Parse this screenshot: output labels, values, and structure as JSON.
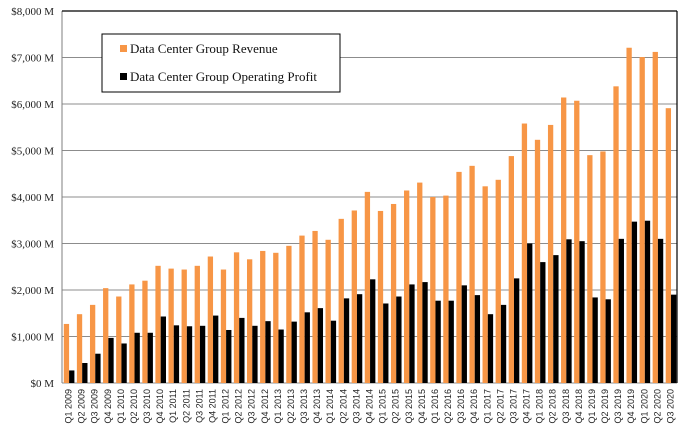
{
  "chart_data": {
    "type": "bar",
    "title": "",
    "xlabel": "",
    "ylabel": "",
    "ylim": [
      0,
      8000
    ],
    "y_ticks": [
      0,
      1000,
      2000,
      3000,
      4000,
      5000,
      6000,
      7000,
      8000
    ],
    "y_tick_labels": [
      "$0 M",
      "$1,000 M",
      "$2,000 M",
      "$3,000 M",
      "$4,000 M",
      "$5,000 M",
      "$6,000 M",
      "$7,000 M",
      "$8,000 M"
    ],
    "grid": true,
    "legend_position": "top-left",
    "categories": [
      "Q1 2009",
      "Q2 2009",
      "Q3 2009",
      "Q4 2009",
      "Q1 2010",
      "Q2 2010",
      "Q3 2010",
      "Q4 2010",
      "Q1 2011",
      "Q2 2011",
      "Q3 2011",
      "Q4 2011",
      "Q1 2012",
      "Q2 2012",
      "Q3 2012",
      "Q4 2012",
      "Q1 2013",
      "Q2 2013",
      "Q3 2013",
      "Q4 2013",
      "Q1 2014",
      "Q2 2014",
      "Q3 2014",
      "Q4 2014",
      "Q1 2015",
      "Q2 2015",
      "Q3 2015",
      "Q4 2015",
      "Q1 2016",
      "Q2 2016",
      "Q3 2016",
      "Q4 2016",
      "Q1 2017",
      "Q2 2017",
      "Q3 2017",
      "Q4 2017",
      "Q1 2018",
      "Q2 2018",
      "Q3 2018",
      "Q4 2018",
      "Q1 2019",
      "Q2 2019",
      "Q3 2019",
      "Q4 2019",
      "Q1 2020",
      "Q2 2020",
      "Q3 2020"
    ],
    "series": [
      {
        "name": "Data Center Group Revenue",
        "color": "#f79646",
        "values": [
          1270,
          1480,
          1680,
          2040,
          1860,
          2120,
          2200,
          2520,
          2460,
          2440,
          2520,
          2720,
          2440,
          2810,
          2660,
          2840,
          2800,
          2950,
          3170,
          3270,
          3080,
          3530,
          3710,
          4110,
          3700,
          3850,
          4140,
          4310,
          4000,
          4030,
          4540,
          4670,
          4230,
          4370,
          4880,
          5580,
          5230,
          5550,
          6140,
          6070,
          4900,
          4980,
          6380,
          7210,
          7010,
          7120,
          5910
        ]
      },
      {
        "name": "Data Center Group Operating Profit",
        "color": "#000000",
        "values": [
          270,
          430,
          630,
          970,
          850,
          1080,
          1080,
          1430,
          1240,
          1220,
          1230,
          1450,
          1140,
          1400,
          1230,
          1330,
          1150,
          1320,
          1520,
          1610,
          1340,
          1820,
          1910,
          2230,
          1710,
          1860,
          2120,
          2170,
          1770,
          1770,
          2100,
          1890,
          1480,
          1680,
          2250,
          3000,
          2600,
          2750,
          3090,
          3050,
          1840,
          1800,
          3100,
          3470,
          3490,
          3100,
          1900
        ]
      }
    ]
  }
}
